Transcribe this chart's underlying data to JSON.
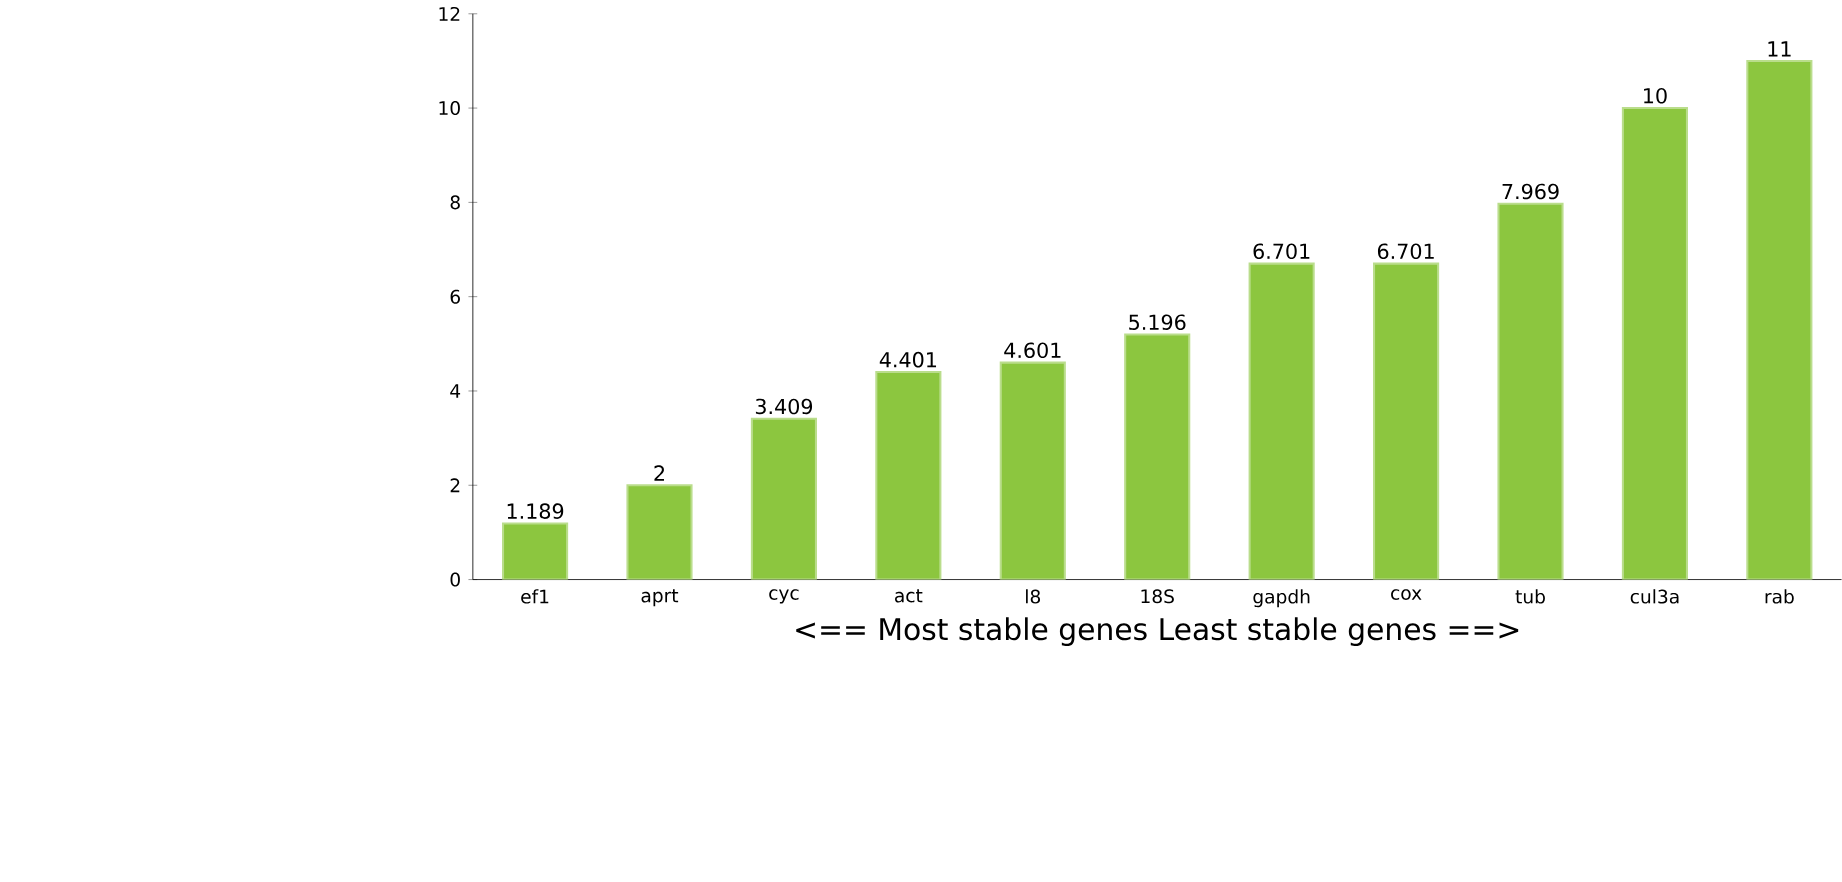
{
  "chart_data": {
    "type": "bar",
    "xlabel": "<== Most stable genes    Least stable genes ==>",
    "categories": [
      "ef1",
      "aprt",
      "cyc",
      "act",
      "l8",
      "18S",
      "gapdh",
      "cox",
      "tub",
      "cul3a",
      "rab"
    ],
    "values": [
      1.189,
      2,
      3.409,
      4.401,
      4.601,
      5.196,
      6.701,
      6.701,
      7.969,
      10,
      11
    ],
    "value_labels": [
      "1.189",
      "2",
      "3.409",
      "4.401",
      "4.601",
      "5.196",
      "6.701",
      "6.701",
      "7.969",
      "10",
      "11"
    ],
    "color": "#8cc63f",
    "ylim": [
      0,
      12
    ],
    "yticks": [
      0,
      2,
      4,
      6,
      8,
      10,
      12
    ],
    "grid": false,
    "legend": false
  }
}
